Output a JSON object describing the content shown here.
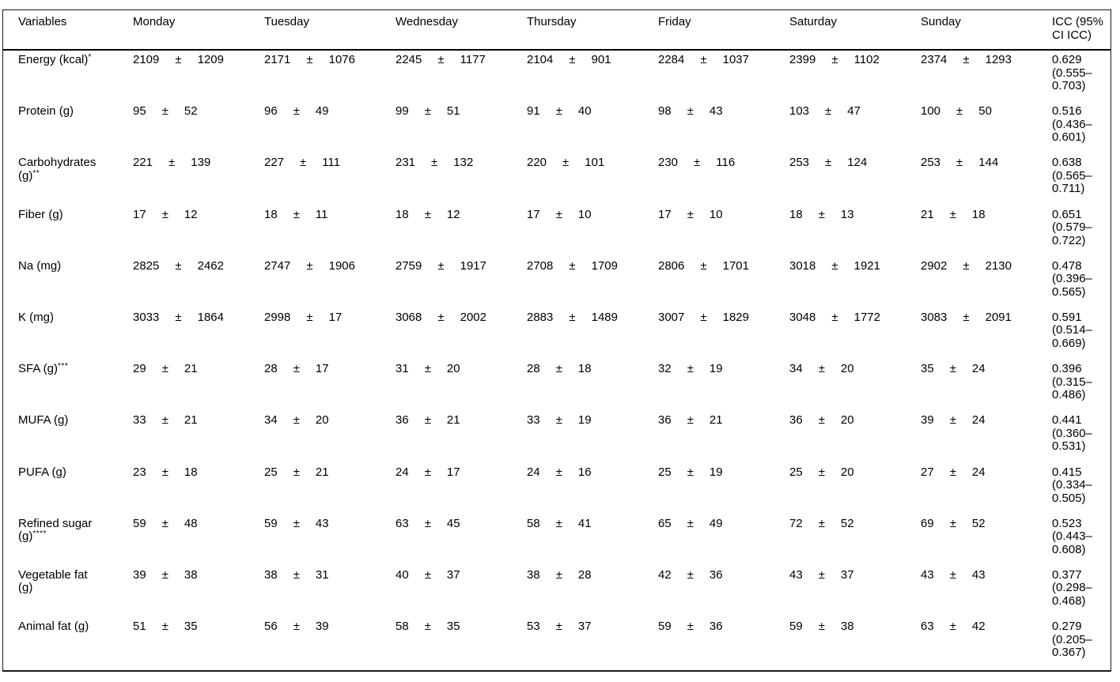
{
  "table": {
    "pm_symbol": "±",
    "columns": [
      {
        "id": "variables",
        "label": "Variables"
      },
      {
        "id": "monday",
        "label": "Monday"
      },
      {
        "id": "tuesday",
        "label": "Tuesday"
      },
      {
        "id": "wednesday",
        "label": "Wednesday"
      },
      {
        "id": "thursday",
        "label": "Thursday"
      },
      {
        "id": "friday",
        "label": "Friday"
      },
      {
        "id": "saturday",
        "label": "Saturday"
      },
      {
        "id": "sunday",
        "label": "Sunday"
      },
      {
        "id": "icc",
        "label": "ICC (95%\nCI ICC)"
      }
    ],
    "rows": [
      {
        "label": "Energy (kcal)",
        "sup": "*",
        "values": [
          {
            "mean": "2109",
            "sd": "1209"
          },
          {
            "mean": "2171",
            "sd": "1076"
          },
          {
            "mean": "2245",
            "sd": "1177"
          },
          {
            "mean": "2104",
            "sd": "901"
          },
          {
            "mean": "2284",
            "sd": "1037"
          },
          {
            "mean": "2399",
            "sd": "1102"
          },
          {
            "mean": "2374",
            "sd": "1293"
          }
        ],
        "icc": "0.629\n(0.555–\n0.703)"
      },
      {
        "label": "Protein (g)",
        "sup": "",
        "values": [
          {
            "mean": "95",
            "sd": "52"
          },
          {
            "mean": "96",
            "sd": "49"
          },
          {
            "mean": "99",
            "sd": "51"
          },
          {
            "mean": "91",
            "sd": "40"
          },
          {
            "mean": "98",
            "sd": "43"
          },
          {
            "mean": "103",
            "sd": "47"
          },
          {
            "mean": "100",
            "sd": "50"
          }
        ],
        "icc": "0.516\n(0.436–\n0.601)"
      },
      {
        "label": "Carbohydrates (g)",
        "sup": "**",
        "values": [
          {
            "mean": "221",
            "sd": "139"
          },
          {
            "mean": "227",
            "sd": "111"
          },
          {
            "mean": "231",
            "sd": "132"
          },
          {
            "mean": "220",
            "sd": "101"
          },
          {
            "mean": "230",
            "sd": "116"
          },
          {
            "mean": "253",
            "sd": "124"
          },
          {
            "mean": "253",
            "sd": "144"
          }
        ],
        "icc": "0.638\n(0.565–\n0.711)"
      },
      {
        "label": "Fiber (g)",
        "sup": "",
        "values": [
          {
            "mean": "17",
            "sd": "12"
          },
          {
            "mean": "18",
            "sd": "11"
          },
          {
            "mean": "18",
            "sd": "12"
          },
          {
            "mean": "17",
            "sd": "10"
          },
          {
            "mean": "17",
            "sd": "10"
          },
          {
            "mean": "18",
            "sd": "13"
          },
          {
            "mean": "21",
            "sd": "18"
          }
        ],
        "icc": "0.651\n(0.579–\n0.722)"
      },
      {
        "label": "Na (mg)",
        "sup": "",
        "values": [
          {
            "mean": "2825",
            "sd": "2462"
          },
          {
            "mean": "2747",
            "sd": "1906"
          },
          {
            "mean": "2759",
            "sd": "1917"
          },
          {
            "mean": "2708",
            "sd": "1709"
          },
          {
            "mean": "2806",
            "sd": "1701"
          },
          {
            "mean": "3018",
            "sd": "1921"
          },
          {
            "mean": "2902",
            "sd": "2130"
          }
        ],
        "icc": "0.478\n(0.396–\n0.565)"
      },
      {
        "label": "K (mg)",
        "sup": "",
        "values": [
          {
            "mean": "3033",
            "sd": "1864"
          },
          {
            "mean": "2998",
            "sd": "17"
          },
          {
            "mean": "3068",
            "sd": "2002"
          },
          {
            "mean": "2883",
            "sd": "1489"
          },
          {
            "mean": "3007",
            "sd": "1829"
          },
          {
            "mean": "3048",
            "sd": "1772"
          },
          {
            "mean": "3083",
            "sd": "2091"
          }
        ],
        "icc": "0.591\n(0.514–\n0.669)"
      },
      {
        "label": "SFA (g)",
        "sup": "***",
        "values": [
          {
            "mean": "29",
            "sd": "21"
          },
          {
            "mean": "28",
            "sd": "17"
          },
          {
            "mean": "31",
            "sd": "20"
          },
          {
            "mean": "28",
            "sd": "18"
          },
          {
            "mean": "32",
            "sd": "19"
          },
          {
            "mean": "34",
            "sd": "20"
          },
          {
            "mean": "35",
            "sd": "24"
          }
        ],
        "icc": "0.396\n(0.315–\n0.486)"
      },
      {
        "label": "MUFA (g)",
        "sup": "",
        "values": [
          {
            "mean": "33",
            "sd": "21"
          },
          {
            "mean": "34",
            "sd": "20"
          },
          {
            "mean": "36",
            "sd": "21"
          },
          {
            "mean": "33",
            "sd": "19"
          },
          {
            "mean": "36",
            "sd": "21"
          },
          {
            "mean": "36",
            "sd": "20"
          },
          {
            "mean": "39",
            "sd": "24"
          }
        ],
        "icc": "0.441\n(0.360–\n0.531)"
      },
      {
        "label": "PUFA (g)",
        "sup": "",
        "values": [
          {
            "mean": "23",
            "sd": "18"
          },
          {
            "mean": "25",
            "sd": "21"
          },
          {
            "mean": "24",
            "sd": "17"
          },
          {
            "mean": "24",
            "sd": "16"
          },
          {
            "mean": "25",
            "sd": "19"
          },
          {
            "mean": "25",
            "sd": "20"
          },
          {
            "mean": "27",
            "sd": "24"
          }
        ],
        "icc": "0.415\n(0.334–\n0.505)"
      },
      {
        "label": "Refined sugar (g)",
        "sup": "****",
        "values": [
          {
            "mean": "59",
            "sd": "48"
          },
          {
            "mean": "59",
            "sd": "43"
          },
          {
            "mean": "63",
            "sd": "45"
          },
          {
            "mean": "58",
            "sd": "41"
          },
          {
            "mean": "65",
            "sd": "49"
          },
          {
            "mean": "72",
            "sd": "52"
          },
          {
            "mean": "69",
            "sd": "52"
          }
        ],
        "icc": "0.523\n(0.443–\n0.608)"
      },
      {
        "label": "Vegetable fat (g)",
        "sup": "",
        "values": [
          {
            "mean": "39",
            "sd": "38"
          },
          {
            "mean": "38",
            "sd": "31"
          },
          {
            "mean": "40",
            "sd": "37"
          },
          {
            "mean": "38",
            "sd": "28"
          },
          {
            "mean": "42",
            "sd": "36"
          },
          {
            "mean": "43",
            "sd": "37"
          },
          {
            "mean": "43",
            "sd": "43"
          }
        ],
        "icc": "0.377\n(0.298–\n0.468)"
      },
      {
        "label": "Animal fat (g)",
        "sup": "",
        "values": [
          {
            "mean": "51",
            "sd": "35"
          },
          {
            "mean": "56",
            "sd": "39"
          },
          {
            "mean": "58",
            "sd": "35"
          },
          {
            "mean": "53",
            "sd": "37"
          },
          {
            "mean": "59",
            "sd": "36"
          },
          {
            "mean": "59",
            "sd": "38"
          },
          {
            "mean": "63",
            "sd": "42"
          }
        ],
        "icc": "0.279\n(0.205–\n0.367)"
      }
    ]
  }
}
